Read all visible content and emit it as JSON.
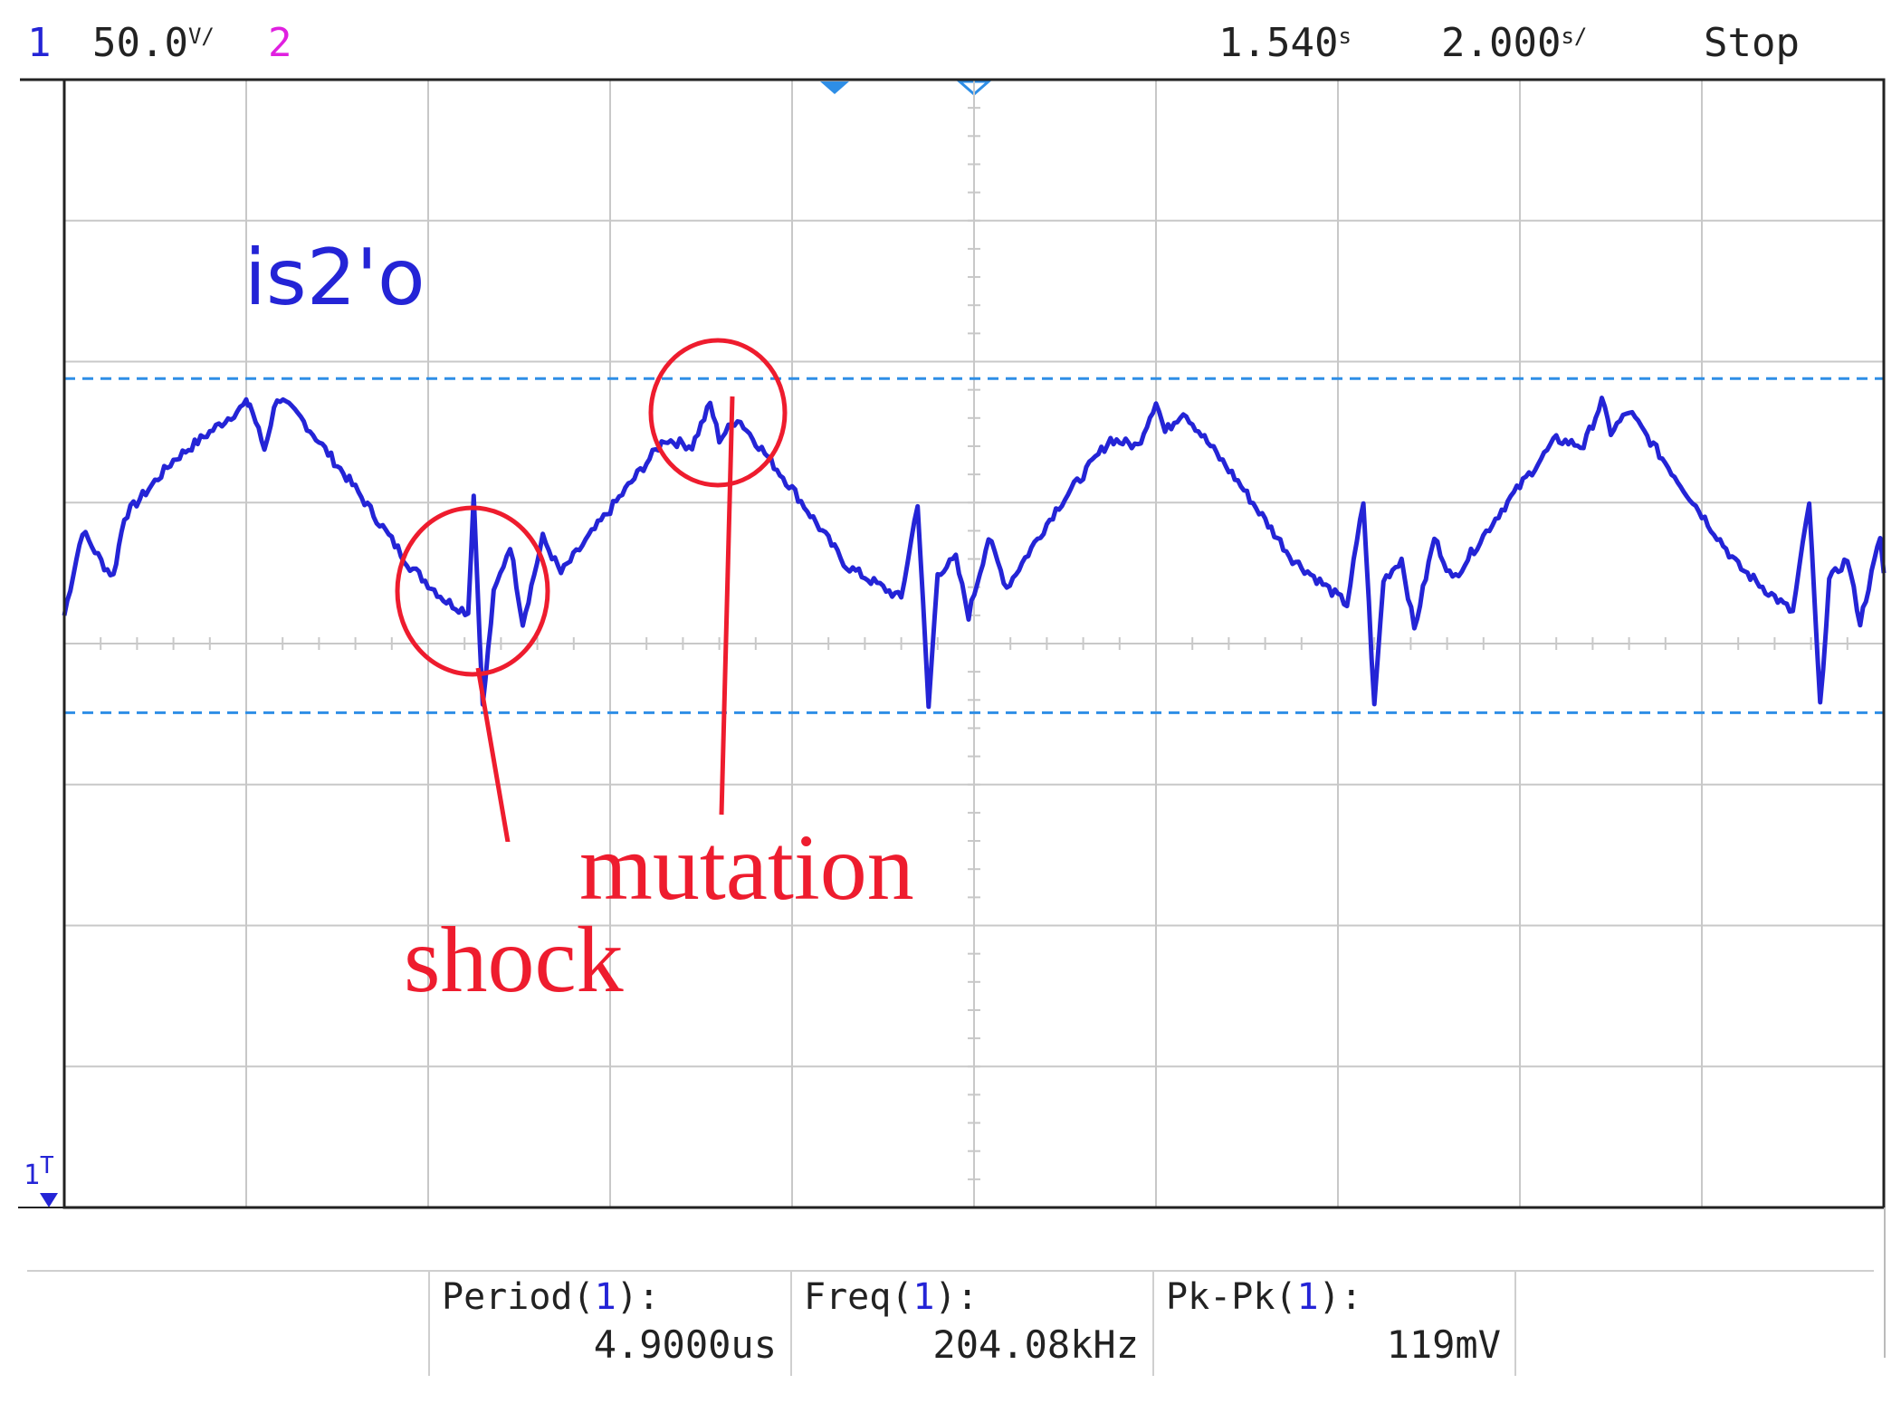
{
  "header": {
    "ch1_number": "1",
    "ch1_scale": "50.0",
    "ch1_scale_unit": "V/",
    "ch2_number": "2",
    "time_offset": "1.540",
    "time_offset_unit": "s",
    "timebase": "2.000",
    "timebase_unit": "s/",
    "run_state": "Stop"
  },
  "signal_label": "is2'o",
  "annotations": {
    "shock": "shock",
    "mutation": "mutation"
  },
  "trigger_marker": {
    "channel": "1",
    "symbol": "T"
  },
  "measurements": [
    {
      "name": "Period",
      "channel": "1",
      "value": "4.9000us"
    },
    {
      "name": "Freq",
      "channel": "1",
      "value": "204.08kHz"
    },
    {
      "name": "Pk-Pk",
      "channel": "1",
      "value": "119mV"
    }
  ],
  "colors": {
    "trace": "#2424d6",
    "cursor": "#2e8ee6",
    "grid": "#c8c8c8",
    "annotation": "#ee1c2e",
    "ch1": "#2424d6",
    "ch2": "#e020e0",
    "text": "#222222"
  },
  "chart_data": {
    "type": "line",
    "title": "",
    "xlabel": "",
    "ylabel": "",
    "x_divisions": 10,
    "y_divisions": 8,
    "xlim": [
      0,
      10
    ],
    "ylim": [
      0,
      8
    ],
    "grid": true,
    "cursors_y": [
      5.88,
      3.51
    ],
    "period_div": 2.45,
    "series": [
      {
        "values_x": [
          0.0,
          0.1,
          0.22,
          0.27,
          0.33,
          0.6,
          1.0,
          1.02,
          1.1,
          1.17,
          1.3,
          1.6,
          1.9,
          2.1,
          2.22,
          2.25,
          2.3,
          2.36,
          2.45,
          2.52,
          2.63,
          2.73,
          3.0,
          3.3,
          3.45,
          3.55,
          3.6,
          3.7,
          4.0,
          4.3,
          4.6,
          4.69,
          4.75,
          4.8,
          4.9,
          4.97,
          5.08,
          5.18,
          5.45,
          5.75,
          5.9,
          6.0,
          6.05,
          6.15,
          6.45,
          6.75,
          7.05,
          7.14,
          7.2,
          7.25,
          7.35,
          7.42,
          7.53,
          7.63,
          7.9,
          8.2,
          8.35,
          8.45,
          8.5,
          8.6,
          8.9,
          9.2,
          9.5,
          9.59,
          9.65,
          9.7,
          9.8,
          9.87,
          9.98,
          10.0
        ],
        "values_y": [
          4.2,
          4.8,
          4.55,
          4.48,
          4.9,
          5.3,
          5.7,
          5.7,
          5.38,
          5.75,
          5.6,
          5.1,
          4.55,
          4.3,
          4.22,
          5.05,
          3.55,
          4.35,
          4.7,
          4.15,
          4.75,
          4.5,
          4.95,
          5.45,
          5.4,
          5.7,
          5.45,
          5.6,
          5.1,
          4.55,
          4.32,
          5.0,
          3.55,
          4.5,
          4.6,
          4.2,
          4.75,
          4.4,
          4.95,
          5.45,
          5.4,
          5.72,
          5.5,
          5.65,
          5.15,
          4.6,
          4.28,
          5.0,
          3.55,
          4.45,
          4.6,
          4.1,
          4.75,
          4.45,
          4.95,
          5.45,
          5.4,
          5.72,
          5.5,
          5.65,
          5.1,
          4.55,
          4.22,
          5.0,
          3.55,
          4.45,
          4.6,
          4.15,
          4.75,
          4.5
        ]
      }
    ]
  }
}
